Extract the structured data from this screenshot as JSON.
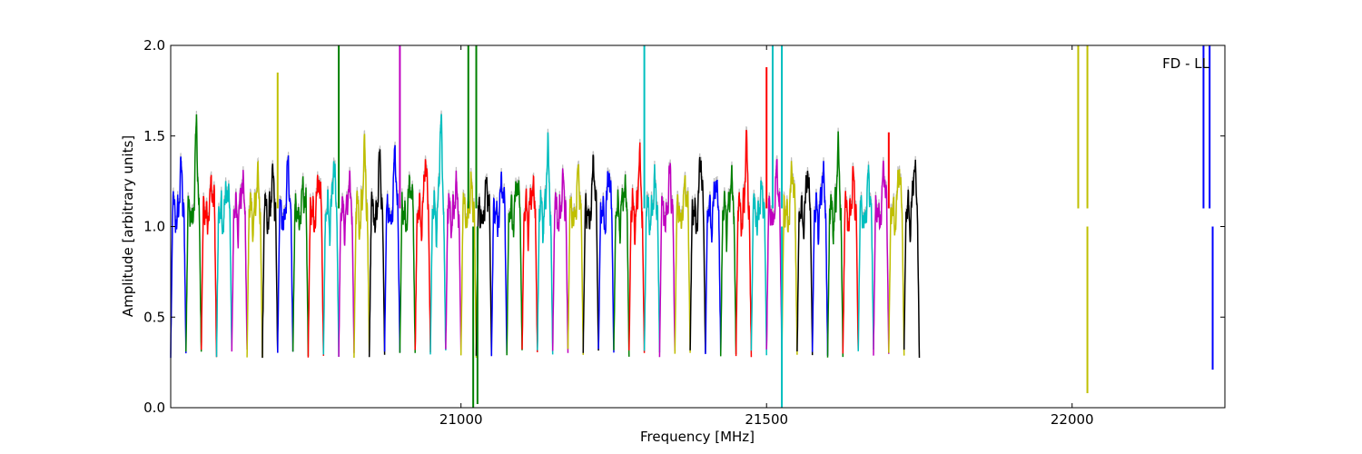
{
  "chart_data": {
    "type": "line",
    "title": "",
    "annotation": "FD - LL",
    "xlabel": "Frequency [MHz]",
    "ylabel": "Amplitude [arbitrary units]",
    "xlim": [
      20525,
      22250
    ],
    "ylim": [
      0.0,
      2.0
    ],
    "xticks": [
      21000,
      21500,
      22000
    ],
    "xtick_labels": [
      "21000",
      "21500",
      "22000"
    ],
    "yticks": [
      0.0,
      0.5,
      1.0,
      1.5,
      2.0
    ],
    "ytick_labels": [
      "0.0",
      "0.5",
      "1.0",
      "1.5",
      "2.0"
    ],
    "grid": false,
    "legend": "none",
    "background_trace_color": "#bfbfbf",
    "color_cycle": [
      "#0000ff",
      "#008000",
      "#ff0000",
      "#00bfbf",
      "#bf00bf",
      "#bfbf00",
      "#000000"
    ],
    "band_width_mhz": 25,
    "band_start_mhz": 20525,
    "band_peaks": [
      1.32,
      1.55,
      1.24,
      1.21,
      1.25,
      1.26,
      1.28,
      1.33,
      1.2,
      1.28,
      1.36,
      1.24,
      1.42,
      1.38,
      1.41,
      1.25,
      1.38,
      1.6,
      1.2,
      1.21,
      1.24,
      1.24,
      1.25,
      1.22,
      1.43,
      1.24,
      1.3,
      1.35,
      1.32,
      1.22,
      1.38,
      1.24,
      1.29,
      1.22,
      1.4,
      1.26,
      1.26,
      1.46,
      1.2,
      1.32,
      1.34,
      1.31,
      1.3,
      1.42,
      1.26,
      1.28,
      1.34,
      1.33,
      1.35
    ],
    "spikes": [
      {
        "x": 20700,
        "y": 1.85,
        "color": "#bfbf00"
      },
      {
        "x": 20800,
        "y": 2.0,
        "color": "#008000"
      },
      {
        "x": 20900,
        "y": 2.0,
        "color": "#bf00bf"
      },
      {
        "x": 21012,
        "y": 2.0,
        "color": "#008000"
      },
      {
        "x": 21025,
        "y": 2.0,
        "color": "#008000"
      },
      {
        "x": 21300,
        "y": 2.0,
        "color": "#00bfbf"
      },
      {
        "x": 21500,
        "y": 1.88,
        "color": "#ff0000"
      },
      {
        "x": 21510,
        "y": 2.0,
        "color": "#00bfbf"
      },
      {
        "x": 21525,
        "y": 2.0,
        "color": "#00bfbf"
      },
      {
        "x": 21700,
        "y": 1.52,
        "color": "#ff0000"
      },
      {
        "x": 22010,
        "y": 2.0,
        "color": "#bfbf00"
      },
      {
        "x": 22025,
        "y": 2.0,
        "color": "#bfbf00"
      },
      {
        "x": 22215,
        "y": 2.0,
        "color": "#0000ff"
      },
      {
        "x": 22225,
        "y": 2.0,
        "color": "#0000ff"
      }
    ],
    "dips": [
      {
        "x": 21020,
        "y": 0.0,
        "color": "#008000"
      },
      {
        "x": 21027,
        "y": 0.02,
        "color": "#008000"
      },
      {
        "x": 21525,
        "y": 0.0,
        "color": "#00bfbf"
      },
      {
        "x": 22025,
        "y": 0.08,
        "color": "#bfbf00"
      },
      {
        "x": 22230,
        "y": 0.21,
        "color": "#0000ff"
      }
    ]
  }
}
